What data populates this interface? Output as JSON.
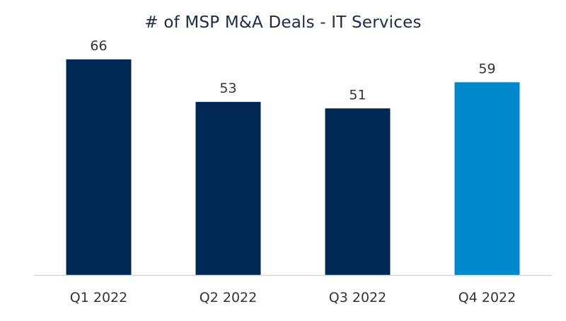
{
  "chart_data": {
    "type": "bar",
    "title": "# of MSP M&A Deals - IT Services",
    "categories": [
      "Q1 2022",
      "Q2 2022",
      "Q3 2022",
      "Q4 2022"
    ],
    "values": [
      66,
      53,
      51,
      59
    ],
    "data_labels": [
      "66",
      "53",
      "51",
      "59"
    ],
    "ylim": [
      0,
      66
    ],
    "xlabel": "",
    "ylabel": "",
    "grid": false,
    "legend": "none",
    "bar_colors": [
      "#002855",
      "#002855",
      "#002855",
      "#0088cc"
    ],
    "axis_color": "#d9d9d9",
    "label_color": "#333333"
  }
}
